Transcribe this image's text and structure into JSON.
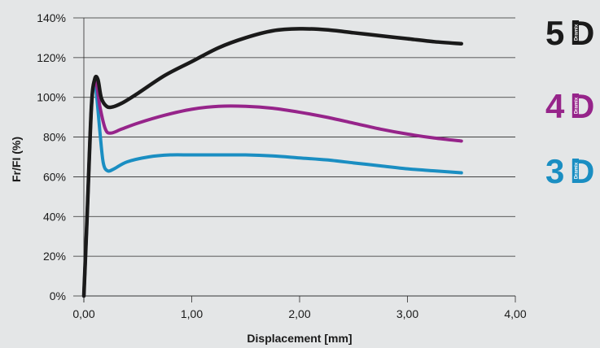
{
  "chart_data": {
    "type": "line",
    "xlabel": "Displacement [mm]",
    "ylabel": "Fr/FI (%)",
    "xlim": [
      0,
      4
    ],
    "ylim": [
      0,
      140
    ],
    "x_ticks": [
      "0,00",
      "1,00",
      "2,00",
      "3,00",
      "4,00"
    ],
    "y_ticks": [
      "0%",
      "20%",
      "40%",
      "60%",
      "80%",
      "100%",
      "120%",
      "140%"
    ],
    "grid": "horizontal",
    "series": [
      {
        "name": "5D",
        "color": "#1a1a1a",
        "points": [
          [
            0,
            0
          ],
          [
            0.03,
            40
          ],
          [
            0.07,
            95
          ],
          [
            0.1,
            109
          ],
          [
            0.13,
            109
          ],
          [
            0.16,
            100
          ],
          [
            0.2,
            96
          ],
          [
            0.25,
            95
          ],
          [
            0.35,
            97
          ],
          [
            0.5,
            102
          ],
          [
            0.75,
            111
          ],
          [
            1.0,
            118
          ],
          [
            1.25,
            125
          ],
          [
            1.5,
            130
          ],
          [
            1.75,
            133.5
          ],
          [
            2.0,
            134.5
          ],
          [
            2.25,
            134
          ],
          [
            2.5,
            132.5
          ],
          [
            2.75,
            131
          ],
          [
            3.0,
            129.5
          ],
          [
            3.25,
            128
          ],
          [
            3.5,
            127
          ]
        ]
      },
      {
        "name": "4D",
        "color": "#96248a",
        "points": [
          [
            0,
            0
          ],
          [
            0.03,
            40
          ],
          [
            0.07,
            95
          ],
          [
            0.1,
            108
          ],
          [
            0.12,
            106
          ],
          [
            0.15,
            95
          ],
          [
            0.2,
            84
          ],
          [
            0.25,
            82
          ],
          [
            0.35,
            84
          ],
          [
            0.5,
            87
          ],
          [
            0.75,
            91
          ],
          [
            1.0,
            94
          ],
          [
            1.25,
            95.5
          ],
          [
            1.5,
            95.5
          ],
          [
            1.75,
            94.5
          ],
          [
            2.0,
            92.5
          ],
          [
            2.25,
            90
          ],
          [
            2.5,
            87
          ],
          [
            2.75,
            84
          ],
          [
            3.0,
            81.5
          ],
          [
            3.25,
            79.5
          ],
          [
            3.5,
            78
          ]
        ]
      },
      {
        "name": "3D",
        "color": "#1a8ec2",
        "points": [
          [
            0,
            0
          ],
          [
            0.03,
            40
          ],
          [
            0.07,
            95
          ],
          [
            0.1,
            108
          ],
          [
            0.12,
            100
          ],
          [
            0.15,
            82
          ],
          [
            0.18,
            67
          ],
          [
            0.22,
            63
          ],
          [
            0.28,
            64
          ],
          [
            0.4,
            67.5
          ],
          [
            0.6,
            70
          ],
          [
            0.8,
            71
          ],
          [
            1.0,
            71
          ],
          [
            1.25,
            71
          ],
          [
            1.5,
            71
          ],
          [
            1.75,
            70.5
          ],
          [
            2.0,
            69.5
          ],
          [
            2.25,
            68.5
          ],
          [
            2.5,
            67
          ],
          [
            2.75,
            65.5
          ],
          [
            3.0,
            64
          ],
          [
            3.25,
            63
          ],
          [
            3.5,
            62
          ]
        ]
      }
    ]
  },
  "logos": [
    {
      "number": "5",
      "letter": "D",
      "brand": "Dramix",
      "color": "#1a1a1a"
    },
    {
      "number": "4",
      "letter": "D",
      "brand": "Dramix",
      "color": "#96248a"
    },
    {
      "number": "3",
      "letter": "D",
      "brand": "Dramix",
      "color": "#1a8ec2"
    }
  ]
}
